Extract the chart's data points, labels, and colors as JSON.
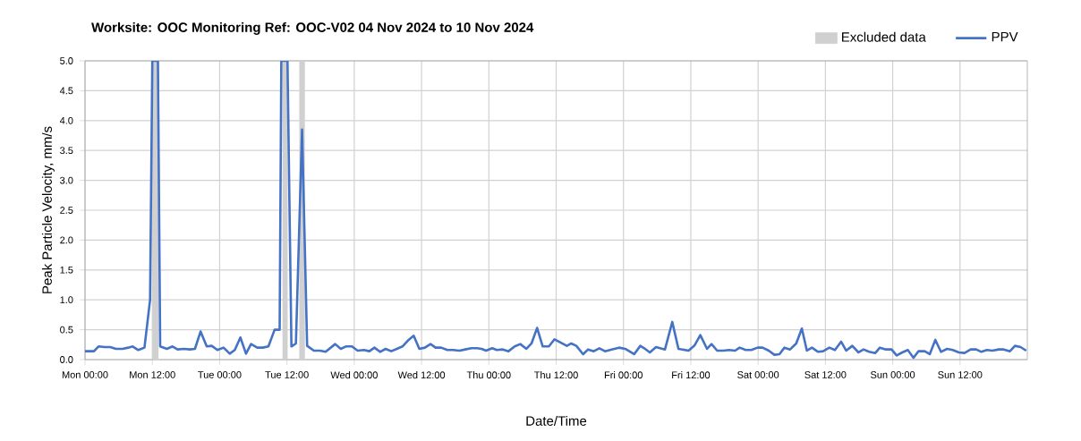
{
  "chart_data": {
    "type": "line",
    "title": "Worksite: OOC   Monitoring Ref: OOC-V02     04 Nov 2024 to 10 Nov 2024",
    "xlabel": "Date/Time",
    "ylabel": "Peak Particle Velocity, mm/s",
    "xlim": [
      "2024-11-04T00:00",
      "2024-11-11T00:00"
    ],
    "ylim": [
      0,
      5
    ],
    "xticks": [
      {
        "value": "2024-11-04T00:00",
        "label": "Mon 00:00"
      },
      {
        "value": "2024-11-04T12:00",
        "label": "Mon 12:00"
      },
      {
        "value": "2024-11-05T00:00",
        "label": "Tue 00:00"
      },
      {
        "value": "2024-11-05T12:00",
        "label": "Tue 12:00"
      },
      {
        "value": "2024-11-06T00:00",
        "label": "Wed 00:00"
      },
      {
        "value": "2024-11-06T12:00",
        "label": "Wed 12:00"
      },
      {
        "value": "2024-11-07T00:00",
        "label": "Thu 00:00"
      },
      {
        "value": "2024-11-07T12:00",
        "label": "Thu 12:00"
      },
      {
        "value": "2024-11-08T00:00",
        "label": "Fri 00:00"
      },
      {
        "value": "2024-11-08T12:00",
        "label": "Fri 12:00"
      },
      {
        "value": "2024-11-09T00:00",
        "label": "Sat 00:00"
      },
      {
        "value": "2024-11-09T12:00",
        "label": "Sat 12:00"
      },
      {
        "value": "2024-11-10T00:00",
        "label": "Sun 00:00"
      },
      {
        "value": "2024-11-10T12:00",
        "label": "Sun 12:00"
      }
    ],
    "yticks": [
      {
        "value": 0,
        "label": "0.0"
      },
      {
        "value": 0.5,
        "label": "0.5"
      },
      {
        "value": 1,
        "label": "1.0"
      },
      {
        "value": 1.5,
        "label": "1.5"
      },
      {
        "value": 2,
        "label": "2.0"
      },
      {
        "value": 2.5,
        "label": "2.5"
      },
      {
        "value": 3,
        "label": "3.0"
      },
      {
        "value": 3.5,
        "label": "3.5"
      },
      {
        "value": 4,
        "label": "4.0"
      },
      {
        "value": 4.5,
        "label": "4.5"
      },
      {
        "value": 5,
        "label": "5.0"
      }
    ],
    "grid": true,
    "legend": "top right",
    "line_style": "solid",
    "bands": [
      {
        "axis": "x",
        "from": "2024-11-04T12:00",
        "to": "2024-11-04T13:06",
        "label": "Excluded data",
        "color": "#d0d0d0"
      },
      {
        "axis": "x",
        "from": "2024-11-05T11:12",
        "to": "2024-11-05T12:06",
        "color": "#d0d0d0"
      },
      {
        "axis": "x",
        "from": "2024-11-05T14:12",
        "to": "2024-11-05T15:12",
        "color": "#d0d0d0"
      }
    ],
    "series": [
      {
        "name": "PPV",
        "color": "#4472c4",
        "x": [
          "2024-11-04T00:00",
          "2024-11-04T01:36",
          "2024-11-04T02:24",
          "2024-11-04T03:30",
          "2024-11-04T04:30",
          "2024-11-04T05:30",
          "2024-11-04T06:42",
          "2024-11-04T07:42",
          "2024-11-04T08:30",
          "2024-11-04T09:30",
          "2024-11-04T10:36",
          "2024-11-04T11:36",
          "2024-11-04T12:00",
          "2024-11-04T13:00",
          "2024-11-04T13:24",
          "2024-11-04T14:36",
          "2024-11-04T15:36",
          "2024-11-04T16:30",
          "2024-11-04T17:36",
          "2024-11-04T18:42",
          "2024-11-04T19:36",
          "2024-11-04T20:36",
          "2024-11-04T21:42",
          "2024-11-04T22:36",
          "2024-11-04T23:36",
          "2024-11-05T00:42",
          "2024-11-05T01:48",
          "2024-11-05T02:42",
          "2024-11-05T03:42",
          "2024-11-05T04:42",
          "2024-11-05T05:36",
          "2024-11-05T06:42",
          "2024-11-05T07:42",
          "2024-11-05T08:42",
          "2024-11-05T09:48",
          "2024-11-05T10:42",
          "2024-11-05T11:00",
          "2024-11-05T12:06",
          "2024-11-05T12:48",
          "2024-11-05T13:36",
          "2024-11-05T14:42",
          "2024-11-05T15:36",
          "2024-11-05T16:48",
          "2024-11-05T17:54",
          "2024-11-05T18:54",
          "2024-11-05T20:36",
          "2024-11-05T21:36",
          "2024-11-05T22:30",
          "2024-11-05T23:36",
          "2024-11-06T00:36",
          "2024-11-06T01:42",
          "2024-11-06T02:42",
          "2024-11-06T03:36",
          "2024-11-06T04:36",
          "2024-11-06T05:36",
          "2024-11-06T06:36",
          "2024-11-06T07:36",
          "2024-11-06T08:36",
          "2024-11-06T09:42",
          "2024-11-06T10:36",
          "2024-11-06T11:36",
          "2024-11-06T12:36",
          "2024-11-06T13:36",
          "2024-11-06T14:30",
          "2024-11-06T15:30",
          "2024-11-06T16:36",
          "2024-11-06T17:36",
          "2024-11-06T18:48",
          "2024-11-06T19:48",
          "2024-11-06T20:54",
          "2024-11-06T21:54",
          "2024-11-06T22:42",
          "2024-11-06T23:30",
          "2024-11-07T00:36",
          "2024-11-07T01:24",
          "2024-11-07T02:30",
          "2024-11-07T03:30",
          "2024-11-07T04:36",
          "2024-11-07T05:36",
          "2024-11-07T06:42",
          "2024-11-07T07:36",
          "2024-11-07T08:36",
          "2024-11-07T09:36",
          "2024-11-07T10:42",
          "2024-11-07T11:42",
          "2024-11-07T12:42",
          "2024-11-07T13:54",
          "2024-11-07T14:42",
          "2024-11-07T15:36",
          "2024-11-07T16:48",
          "2024-11-07T17:42",
          "2024-11-07T18:42",
          "2024-11-07T19:42",
          "2024-11-07T20:42",
          "2024-11-07T21:54",
          "2024-11-07T23:12",
          "2024-11-08T00:18",
          "2024-11-08T01:54",
          "2024-11-08T03:00",
          "2024-11-08T03:42",
          "2024-11-08T04:42",
          "2024-11-08T05:48",
          "2024-11-08T07:24",
          "2024-11-08T08:42",
          "2024-11-08T09:48",
          "2024-11-08T11:36",
          "2024-11-08T12:42",
          "2024-11-08T13:42",
          "2024-11-08T14:54",
          "2024-11-08T15:42",
          "2024-11-08T16:42",
          "2024-11-08T17:48",
          "2024-11-08T18:48",
          "2024-11-08T19:54",
          "2024-11-08T20:42",
          "2024-11-08T21:48",
          "2024-11-08T22:48",
          "2024-11-08T23:54",
          "2024-11-09T00:48",
          "2024-11-09T01:54",
          "2024-11-09T02:54",
          "2024-11-09T03:48",
          "2024-11-09T04:42",
          "2024-11-09T05:42",
          "2024-11-09T06:48",
          "2024-11-09T07:48",
          "2024-11-09T08:42",
          "2024-11-09T09:36",
          "2024-11-09T10:42",
          "2024-11-09T11:36",
          "2024-11-09T12:42",
          "2024-11-09T13:42",
          "2024-11-09T14:48",
          "2024-11-09T15:42",
          "2024-11-09T16:48",
          "2024-11-09T17:54",
          "2024-11-09T18:48",
          "2024-11-09T19:48",
          "2024-11-09T20:54",
          "2024-11-09T21:42",
          "2024-11-09T22:48",
          "2024-11-09T23:48",
          "2024-11-10T00:42",
          "2024-11-10T01:42",
          "2024-11-10T02:42",
          "2024-11-10T03:42",
          "2024-11-10T04:36",
          "2024-11-10T05:42",
          "2024-11-10T06:36",
          "2024-11-10T07:36",
          "2024-11-10T08:36",
          "2024-11-10T09:42",
          "2024-11-10T10:42",
          "2024-11-10T11:48",
          "2024-11-10T12:48",
          "2024-11-10T13:54",
          "2024-11-10T14:54",
          "2024-11-10T15:48",
          "2024-11-10T16:48",
          "2024-11-10T17:48",
          "2024-11-10T18:54",
          "2024-11-10T19:48",
          "2024-11-10T20:54",
          "2024-11-10T21:48",
          "2024-11-10T22:48",
          "2024-11-10T23:48"
        ],
        "values": [
          0.14,
          0.14,
          0.22,
          0.21,
          0.21,
          0.18,
          0.18,
          0.2,
          0.22,
          0.16,
          0.2,
          1.0,
          5.0,
          5.0,
          0.22,
          0.18,
          0.22,
          0.17,
          0.18,
          0.17,
          0.18,
          0.47,
          0.22,
          0.23,
          0.16,
          0.2,
          0.1,
          0.16,
          0.37,
          0.1,
          0.26,
          0.2,
          0.2,
          0.22,
          0.5,
          0.5,
          5.0,
          5.0,
          0.22,
          0.27,
          3.85,
          0.23,
          0.15,
          0.15,
          0.13,
          0.26,
          0.18,
          0.22,
          0.22,
          0.15,
          0.16,
          0.14,
          0.2,
          0.13,
          0.18,
          0.14,
          0.18,
          0.22,
          0.33,
          0.4,
          0.18,
          0.2,
          0.26,
          0.2,
          0.2,
          0.16,
          0.16,
          0.15,
          0.17,
          0.19,
          0.19,
          0.18,
          0.15,
          0.19,
          0.16,
          0.17,
          0.14,
          0.22,
          0.26,
          0.18,
          0.27,
          0.53,
          0.22,
          0.22,
          0.34,
          0.29,
          0.23,
          0.27,
          0.23,
          0.09,
          0.17,
          0.14,
          0.19,
          0.14,
          0.17,
          0.2,
          0.18,
          0.09,
          0.23,
          0.19,
          0.12,
          0.21,
          0.17,
          0.63,
          0.18,
          0.15,
          0.24,
          0.41,
          0.18,
          0.26,
          0.15,
          0.15,
          0.16,
          0.15,
          0.2,
          0.16,
          0.16,
          0.2,
          0.2,
          0.15,
          0.08,
          0.09,
          0.2,
          0.17,
          0.27,
          0.52,
          0.15,
          0.2,
          0.13,
          0.14,
          0.2,
          0.16,
          0.3,
          0.15,
          0.23,
          0.12,
          0.17,
          0.13,
          0.11,
          0.2,
          0.17,
          0.17,
          0.07,
          0.12,
          0.16,
          0.03,
          0.14,
          0.14,
          0.09,
          0.33,
          0.13,
          0.18,
          0.16,
          0.12,
          0.11,
          0.17,
          0.17,
          0.13,
          0.16,
          0.15,
          0.17,
          0.17,
          0.14,
          0.23,
          0.21,
          0.15
        ]
      }
    ]
  }
}
